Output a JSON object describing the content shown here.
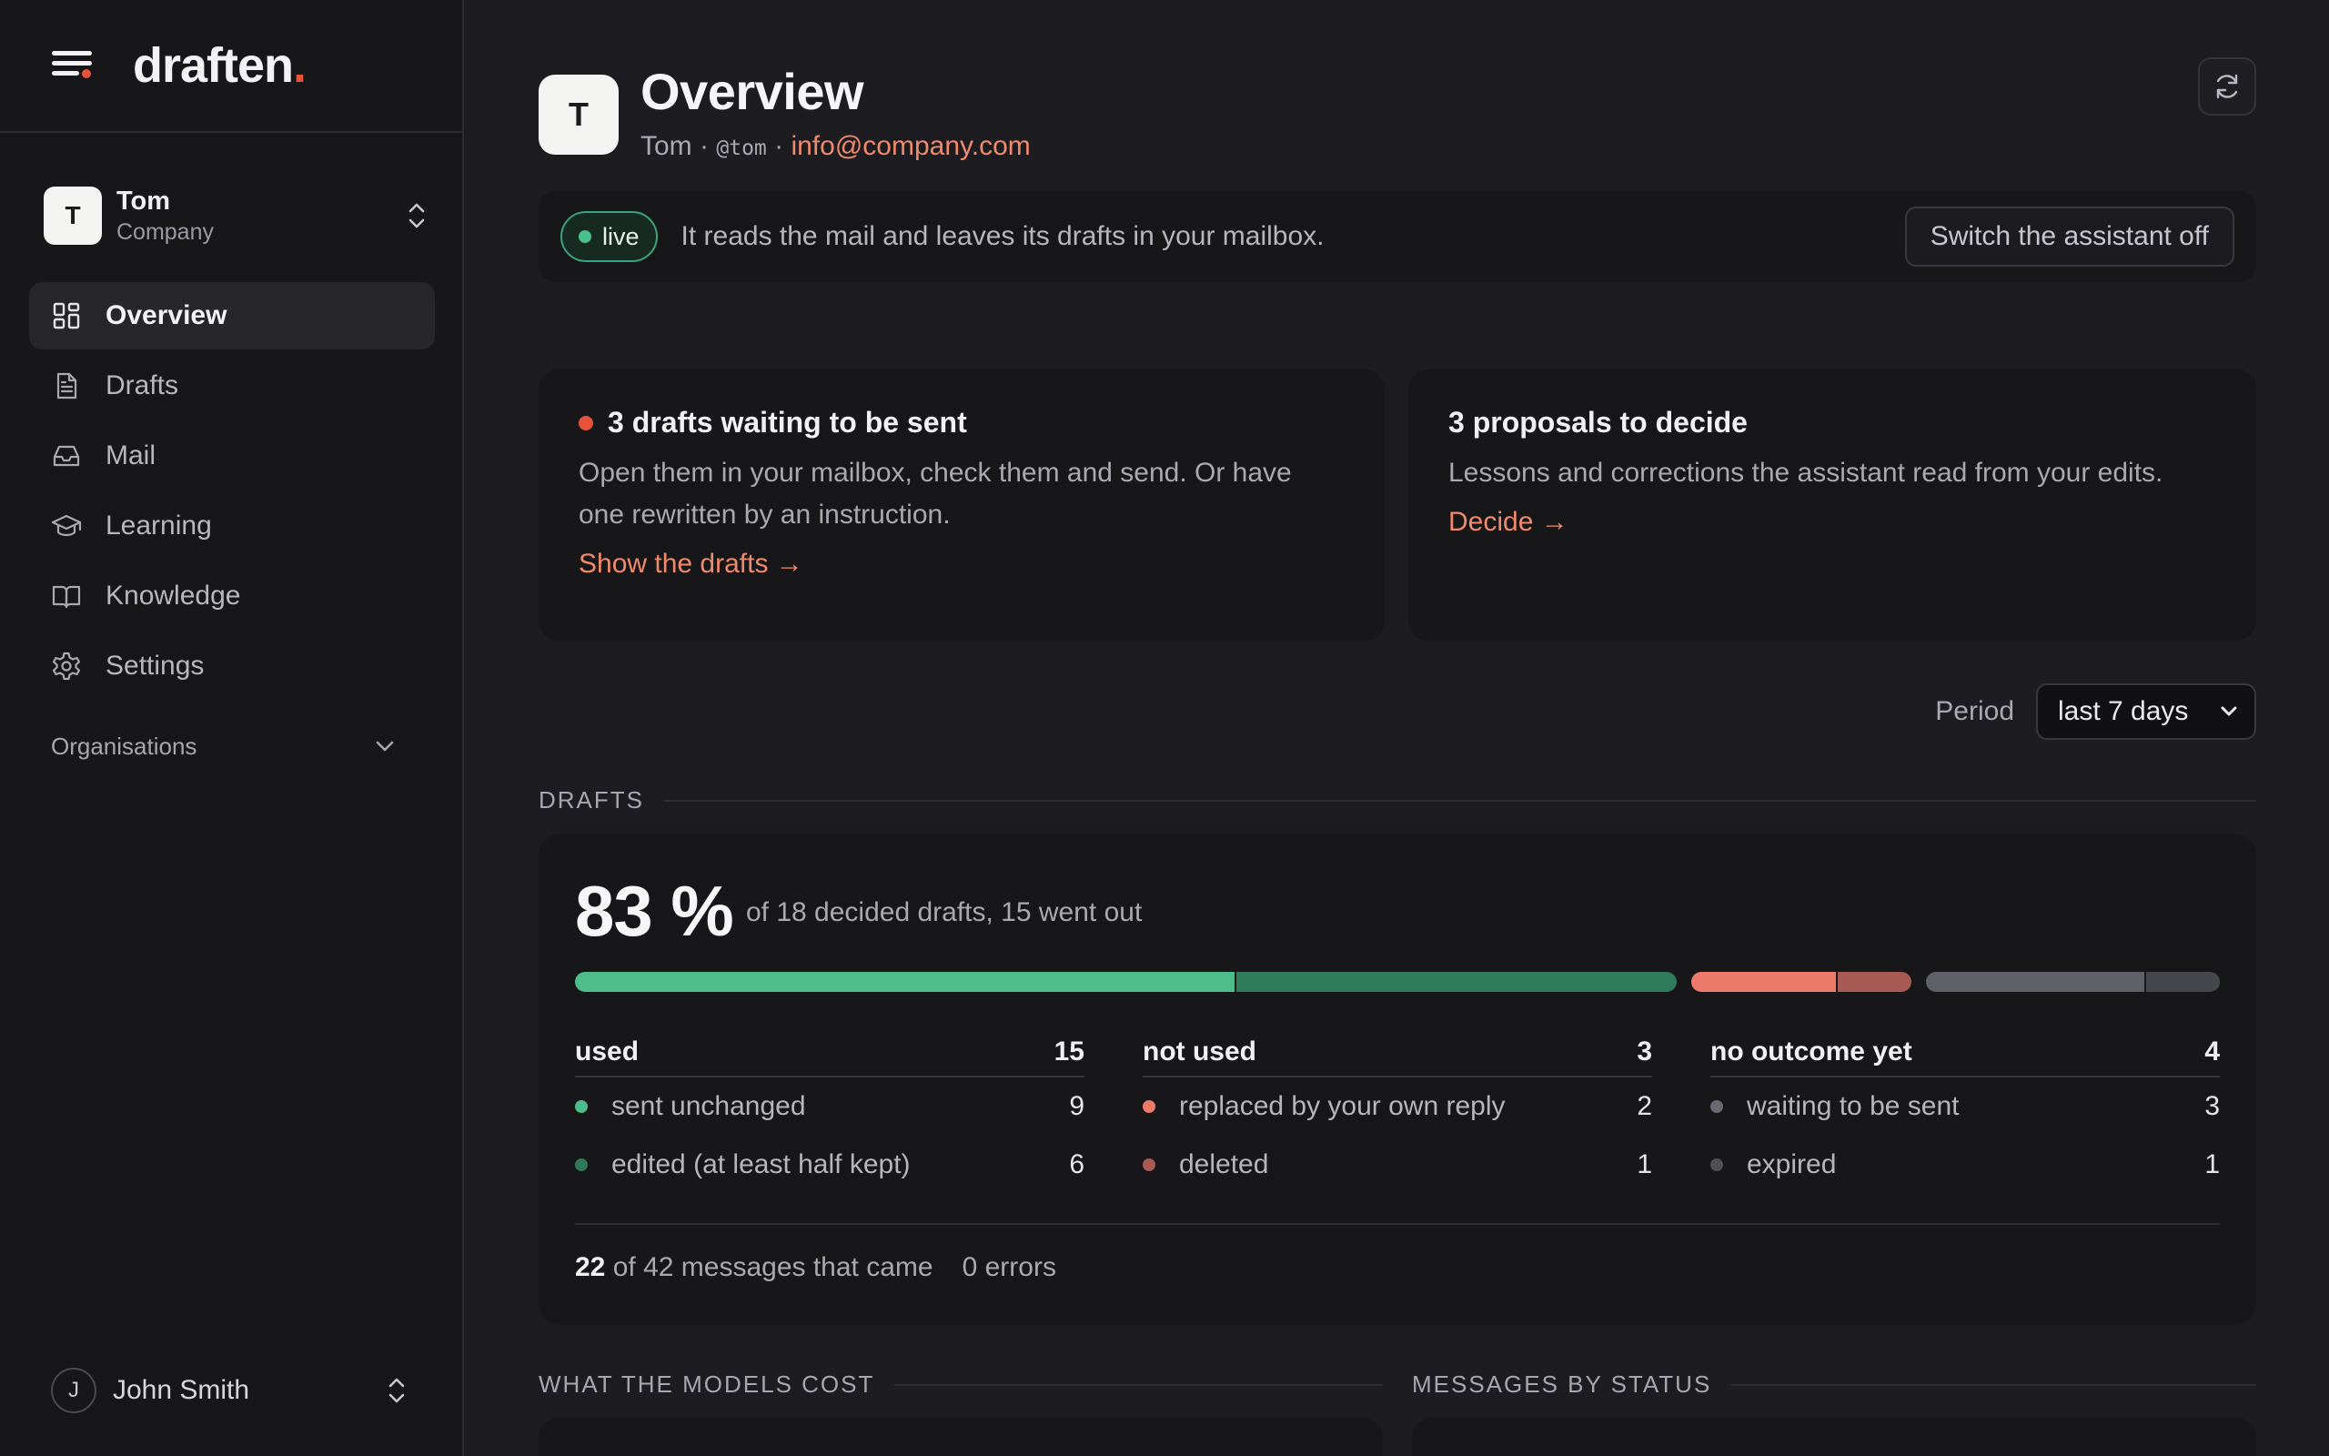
{
  "app": {
    "brand": "draften",
    "brand_dot": "."
  },
  "workspace": {
    "initial": "T",
    "name": "Tom",
    "subtitle": "Company"
  },
  "nav": [
    {
      "label": "Overview",
      "icon": "grid-icon",
      "active": true
    },
    {
      "label": "Drafts",
      "icon": "document-icon",
      "active": false
    },
    {
      "label": "Mail",
      "icon": "inbox-icon",
      "active": false
    },
    {
      "label": "Learning",
      "icon": "graduation-cap-icon",
      "active": false
    },
    {
      "label": "Knowledge",
      "icon": "book-icon",
      "active": false
    },
    {
      "label": "Settings",
      "icon": "gear-icon",
      "active": false
    }
  ],
  "organisations_label": "Organisations",
  "user": {
    "initial": "J",
    "name": "John Smith"
  },
  "header": {
    "initial": "T",
    "title": "Overview",
    "name": "Tom",
    "sep": "·",
    "handle": "@tom",
    "email": "info@company.com"
  },
  "status": {
    "pill": "live",
    "text": "It reads the mail and leaves its drafts in your mailbox.",
    "switch_label": "Switch the assistant off"
  },
  "cards": [
    {
      "title": "3 drafts waiting to be sent",
      "body": "Open them in your mailbox, check them and send. Or have one rewritten by an instruction.",
      "link": "Show the drafts →"
    },
    {
      "title": "3 proposals to decide",
      "body": "Lessons and corrections the assistant read from your edits.",
      "link": "Decide →"
    }
  ],
  "period": {
    "label": "Period",
    "value": "last 7 days"
  },
  "drafts_section": {
    "heading": "DRAFTS",
    "percent": "83 %",
    "percent_sub": "of 18 decided drafts, 15 went out",
    "bar": [
      {
        "name": "sent unchanged",
        "value": 9,
        "color": "#4fbd8a"
      },
      {
        "name": "edited (at least half kept)",
        "value": 6,
        "color": "#2f7a5a"
      },
      {
        "name": "replaced by your own reply",
        "value": 2,
        "color": "#ee7b6a"
      },
      {
        "name": "deleted",
        "value": 1,
        "color": "#a85b55"
      },
      {
        "name": "waiting to be sent",
        "value": 3,
        "color": "#5f5f67"
      },
      {
        "name": "expired",
        "value": 1,
        "color": "#46464d"
      }
    ],
    "columns": [
      {
        "title": "used",
        "total": "15",
        "rows": [
          {
            "label": "sent unchanged",
            "value": "9",
            "color": "#4fbd8a"
          },
          {
            "label": "edited (at least half kept)",
            "value": "6",
            "color": "#2f7a5a"
          }
        ]
      },
      {
        "title": "not used",
        "total": "3",
        "rows": [
          {
            "label": "replaced by your own reply",
            "value": "2",
            "color": "#ee7b6a"
          },
          {
            "label": "deleted",
            "value": "1",
            "color": "#a85b55"
          }
        ]
      },
      {
        "title": "no outcome yet",
        "total": "4",
        "rows": [
          {
            "label": "waiting to be sent",
            "value": "3",
            "color": "#6a6a72"
          },
          {
            "label": "expired",
            "value": "1",
            "color": "#4f4f56"
          }
        ]
      }
    ],
    "messages_count": "22",
    "messages_text": "of 42 messages that came",
    "errors_text": "0 errors"
  },
  "lower_sections": {
    "cost_heading": "WHAT THE MODELS COST",
    "status_heading": "MESSAGES BY STATUS"
  }
}
